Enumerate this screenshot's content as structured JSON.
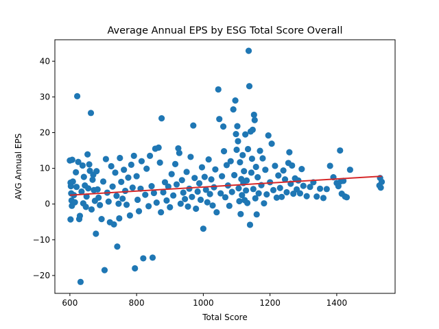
{
  "chart_data": {
    "type": "scatter",
    "title": "Average Annual EPS by ESG Total Score Overall",
    "xlabel": "Total Score",
    "ylabel": "AVG Annual EPS",
    "xlim": [
      555,
      1575
    ],
    "ylim": [
      -25,
      46
    ],
    "xticks": [
      600,
      800,
      1000,
      1200,
      1400
    ],
    "yticks": [
      -20,
      -10,
      0,
      10,
      20,
      30,
      40
    ],
    "grid": false,
    "legend": "none",
    "colors": {
      "points": "#1f77b4",
      "trend": "#d62728",
      "frame": "#000000"
    },
    "series": [
      {
        "type": "scatter",
        "points": [
          [
            600,
            12.2
          ],
          [
            607,
            12.4
          ],
          [
            602,
            6.0
          ],
          [
            603,
            5.0
          ],
          [
            604,
            3.0
          ],
          [
            605,
            1.0
          ],
          [
            606,
            -0.5
          ],
          [
            602,
            -4.3
          ],
          [
            609,
            6.3
          ],
          [
            612,
            2.5
          ],
          [
            615,
            0.5
          ],
          [
            618,
            8.9
          ],
          [
            620,
            4.8
          ],
          [
            622,
            30.2
          ],
          [
            625,
            11.8
          ],
          [
            628,
            -4.2
          ],
          [
            630,
            -3.3
          ],
          [
            632,
            -21.8
          ],
          [
            635,
            3.5
          ],
          [
            638,
            10.8
          ],
          [
            640,
            0.2
          ],
          [
            642,
            7.6
          ],
          [
            645,
            5.2
          ],
          [
            648,
            -0.8
          ],
          [
            650,
            2.1
          ],
          [
            653,
            13.9
          ],
          [
            655,
            4.4
          ],
          [
            658,
            11.1
          ],
          [
            660,
            9.3
          ],
          [
            663,
            25.5
          ],
          [
            665,
            -1.5
          ],
          [
            668,
            6.8
          ],
          [
            670,
            8.2
          ],
          [
            672,
            3.9
          ],
          [
            675,
            0.9
          ],
          [
            678,
            -8.3
          ],
          [
            680,
            9.2
          ],
          [
            683,
            4.1
          ],
          [
            686,
            1.8
          ],
          [
            690,
            -0.3
          ],
          [
            695,
            -4.2
          ],
          [
            700,
            6.3
          ],
          [
            704,
            -18.5
          ],
          [
            708,
            12.6
          ],
          [
            712,
            3.2
          ],
          [
            716,
            0.7
          ],
          [
            720,
            -5.1
          ],
          [
            724,
            10.6
          ],
          [
            728,
            4.9
          ],
          [
            732,
            -5.7
          ],
          [
            736,
            8.8
          ],
          [
            740,
            2.3
          ],
          [
            742,
            -11.9
          ],
          [
            746,
            0.1
          ],
          [
            748,
            -4.0
          ],
          [
            750,
            12.9
          ],
          [
            754,
            6.2
          ],
          [
            758,
            1.5
          ],
          [
            762,
            9.6
          ],
          [
            766,
            3.7
          ],
          [
            770,
            -0.2
          ],
          [
            775,
            7.4
          ],
          [
            780,
            -3.2
          ],
          [
            784,
            11.0
          ],
          [
            788,
            4.6
          ],
          [
            792,
            13.5
          ],
          [
            795,
            -18.0
          ],
          [
            800,
            7.8
          ],
          [
            803,
            1.2
          ],
          [
            807,
            -2.0
          ],
          [
            812,
            4.3
          ],
          [
            815,
            12.0
          ],
          [
            820,
            -15.2
          ],
          [
            826,
            2.6
          ],
          [
            830,
            9.9
          ],
          [
            836,
            -0.6
          ],
          [
            840,
            13.5
          ],
          [
            845,
            5.0
          ],
          [
            848,
            -15.0
          ],
          [
            852,
            3.1
          ],
          [
            856,
            15.5
          ],
          [
            860,
            0.4
          ],
          [
            866,
            15.8
          ],
          [
            870,
            11.6
          ],
          [
            873,
            -2.3
          ],
          [
            875,
            24.0
          ],
          [
            880,
            3.3
          ],
          [
            885,
            6.1
          ],
          [
            890,
            1.0
          ],
          [
            895,
            4.9
          ],
          [
            900,
            -0.9
          ],
          [
            905,
            8.4
          ],
          [
            910,
            2.4
          ],
          [
            916,
            11.2
          ],
          [
            920,
            5.5
          ],
          [
            925,
            15.6
          ],
          [
            928,
            14.3
          ],
          [
            932,
            0.1
          ],
          [
            936,
            6.7
          ],
          [
            940,
            3.2
          ],
          [
            945,
            1.4
          ],
          [
            950,
            9.0
          ],
          [
            954,
            -0.7
          ],
          [
            958,
            4.3
          ],
          [
            962,
            13.2
          ],
          [
            966,
            2.0
          ],
          [
            970,
            22.0
          ],
          [
            974,
            7.3
          ],
          [
            978,
            -1.3
          ],
          [
            983,
            3.5
          ],
          [
            988,
            5.8
          ],
          [
            992,
            1.2
          ],
          [
            996,
            10.3
          ],
          [
            1000,
            -6.9
          ],
          [
            1004,
            7.6
          ],
          [
            1008,
            4.0
          ],
          [
            1012,
            0.5
          ],
          [
            1016,
            12.5
          ],
          [
            1020,
            2.8
          ],
          [
            1024,
            6.9
          ],
          [
            1028,
            -0.4
          ],
          [
            1032,
            4.7
          ],
          [
            1036,
            9.7
          ],
          [
            1040,
            -2.3
          ],
          [
            1045,
            32.1
          ],
          [
            1048,
            23.8
          ],
          [
            1052,
            3.0
          ],
          [
            1056,
            7.8
          ],
          [
            1060,
            21.7
          ],
          [
            1062,
            14.8
          ],
          [
            1066,
            1.9
          ],
          [
            1070,
            10.9
          ],
          [
            1074,
            5.2
          ],
          [
            1078,
            -0.5
          ],
          [
            1082,
            12.0
          ],
          [
            1086,
            3.4
          ],
          [
            1090,
            26.5
          ],
          [
            1093,
            8.1
          ],
          [
            1096,
            29.0
          ],
          [
            1098,
            19.6
          ],
          [
            1100,
            15.2
          ],
          [
            1102,
            21.8
          ],
          [
            1104,
            17.6
          ],
          [
            1106,
            4.4
          ],
          [
            1108,
            0.8
          ],
          [
            1110,
            11.7
          ],
          [
            1112,
            -2.8
          ],
          [
            1114,
            7.0
          ],
          [
            1116,
            2.5
          ],
          [
            1118,
            13.7
          ],
          [
            1120,
            5.9
          ],
          [
            1122,
            9.2
          ],
          [
            1124,
            1.1
          ],
          [
            1126,
            19.5
          ],
          [
            1128,
            3.8
          ],
          [
            1130,
            6.6
          ],
          [
            1132,
            0.3
          ],
          [
            1134,
            15.4
          ],
          [
            1136,
            42.9
          ],
          [
            1138,
            33.0
          ],
          [
            1140,
            -5.8
          ],
          [
            1142,
            20.3
          ],
          [
            1144,
            8.8
          ],
          [
            1146,
            12.7
          ],
          [
            1148,
            20.8
          ],
          [
            1150,
            4.2
          ],
          [
            1152,
            25.0
          ],
          [
            1154,
            23.5
          ],
          [
            1156,
            1.6
          ],
          [
            1158,
            10.4
          ],
          [
            1160,
            -2.9
          ],
          [
            1163,
            7.5
          ],
          [
            1166,
            3.0
          ],
          [
            1170,
            14.9
          ],
          [
            1174,
            5.3
          ],
          [
            1178,
            12.8
          ],
          [
            1182,
            0.2
          ],
          [
            1186,
            9.6
          ],
          [
            1190,
            2.7
          ],
          [
            1195,
            19.2
          ],
          [
            1200,
            6.1
          ],
          [
            1205,
            16.9
          ],
          [
            1210,
            3.9
          ],
          [
            1215,
            10.7
          ],
          [
            1220,
            1.8
          ],
          [
            1225,
            8.0
          ],
          [
            1230,
            4.5
          ],
          [
            1235,
            2.0
          ],
          [
            1240,
            9.4
          ],
          [
            1245,
            6.9
          ],
          [
            1250,
            3.3
          ],
          [
            1255,
            11.5
          ],
          [
            1258,
            14.5
          ],
          [
            1262,
            5.7
          ],
          [
            1266,
            10.8
          ],
          [
            1270,
            2.9
          ],
          [
            1275,
            7.2
          ],
          [
            1280,
            4.1
          ],
          [
            1285,
            6.6
          ],
          [
            1290,
            3.0
          ],
          [
            1295,
            9.8
          ],
          [
            1300,
            5.1
          ],
          [
            1310,
            2.2
          ],
          [
            1320,
            4.8
          ],
          [
            1330,
            6.1
          ],
          [
            1340,
            2.1
          ],
          [
            1350,
            4.3
          ],
          [
            1360,
            1.7
          ],
          [
            1370,
            4.2
          ],
          [
            1380,
            10.7
          ],
          [
            1390,
            7.5
          ],
          [
            1400,
            5.9
          ],
          [
            1405,
            5.0
          ],
          [
            1410,
            15.0
          ],
          [
            1413,
            6.4
          ],
          [
            1415,
            2.9
          ],
          [
            1420,
            6.5
          ],
          [
            1425,
            2.1
          ],
          [
            1430,
            1.9
          ],
          [
            1440,
            9.6
          ],
          [
            1528,
            5.2
          ],
          [
            1530,
            7.3
          ],
          [
            1532,
            4.6
          ],
          [
            1535,
            6.2
          ]
        ]
      },
      {
        "type": "line",
        "points": [
          [
            600,
            2.5
          ],
          [
            1535,
            7.8
          ]
        ]
      }
    ]
  }
}
